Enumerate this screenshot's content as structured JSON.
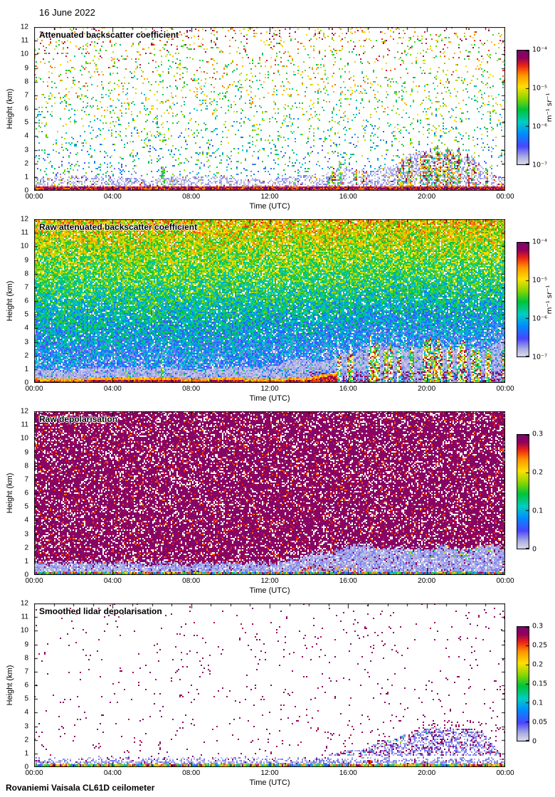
{
  "header": {
    "date_label": "16 June 2022"
  },
  "footer": {
    "instrument_label": "Rovaniemi Vaisala CL61D ceilometer"
  },
  "chart_data": [
    {
      "type": "heatmap",
      "title": "Attenuated backscatter coefficient",
      "xlabel": "Time (UTC)",
      "ylabel": "Height (km)",
      "x_ticks": [
        "00:00",
        "04:00",
        "08:00",
        "12:00",
        "16:00",
        "20:00",
        "00:00"
      ],
      "y_ticks": [
        "0",
        "1",
        "2",
        "3",
        "4",
        "5",
        "6",
        "7",
        "8",
        "9",
        "10",
        "11",
        "12"
      ],
      "x_range_hours": [
        0,
        24
      ],
      "y_range_km": [
        0,
        12
      ],
      "colorbar": {
        "scale": "log",
        "range": [
          "1e-7",
          "1e-4"
        ],
        "ticks_top_to_bottom": [
          "10⁻⁴",
          "10⁻⁵",
          "10⁻⁶",
          "10⁻⁷"
        ],
        "unit": "m⁻¹ sr⁻¹"
      },
      "render": {
        "kind": "sparse_backscatter",
        "seed": 101
      },
      "description": "Sparse colored speckle noise over white background; strong red aerosol layer below ~0.4 km all day; gray speckle boundary layer below ~1 km growing to ~3 km after 15:00; narrow green plume near 06:30 up to ~2 km; mixed colorful boundary-layer structures 15:00-23:30 peaking near 21:00."
    },
    {
      "type": "heatmap",
      "title": "Raw attenuated backscatter coefficient",
      "xlabel": "Time (UTC)",
      "ylabel": "Height (km)",
      "x_ticks": [
        "00:00",
        "04:00",
        "08:00",
        "12:00",
        "16:00",
        "20:00",
        "00:00"
      ],
      "y_ticks": [
        "0",
        "1",
        "2",
        "3",
        "4",
        "5",
        "6",
        "7",
        "8",
        "9",
        "10",
        "11",
        "12"
      ],
      "x_range_hours": [
        0,
        24
      ],
      "y_range_km": [
        0,
        12
      ],
      "colorbar": {
        "scale": "log",
        "range": [
          "1e-7",
          "1e-4"
        ],
        "ticks_top_to_bottom": [
          "10⁻⁴",
          "10⁻⁵",
          "10⁻⁶",
          "10⁻⁷"
        ],
        "unit": "m⁻¹ sr⁻¹"
      },
      "render": {
        "kind": "dense_backscatter",
        "seed": 202
      },
      "description": "Dense noise over full panel: green-yellow at top grading through cyan to blue lower down; light gray low-signal zone below ~1 km rising to ~3 km by late evening; solid red surface layer below ~0.3 km until ~15:30 thickening 13:30-15:30; blue-purple band near surface after 14:00; colorful vertical streaks 16:00-23:00 up to ~3 km; green plume near 06:30."
    },
    {
      "type": "heatmap",
      "title": "Raw depolarisation",
      "xlabel": "Time (UTC)",
      "ylabel": "Height (km)",
      "x_ticks": [
        "00:00",
        "04:00",
        "08:00",
        "12:00",
        "16:00",
        "20:00",
        "00:00"
      ],
      "y_ticks": [
        "0",
        "1",
        "2",
        "3",
        "4",
        "5",
        "6",
        "7",
        "8",
        "9",
        "10",
        "11",
        "12"
      ],
      "x_range_hours": [
        0,
        24
      ],
      "y_range_km": [
        0,
        12
      ],
      "colorbar": {
        "scale": "linear",
        "range": [
          0,
          0.3
        ],
        "ticks_top_to_bottom": [
          "0.3",
          "0.2",
          "0.1",
          "0"
        ],
        "unit": ""
      },
      "render": {
        "kind": "raw_depolarisation",
        "seed": 303
      },
      "description": "Dense purple-magenta noise with scattered red speckles above ~1 km; pale low-depolarisation band below ~0.9 km widening to ~2 km after 13:00; multicolored strip at the very bottom; red-orange patches near surface 14:00-16:00; cyan-green speckles along the band top edge after 19:00."
    },
    {
      "type": "heatmap",
      "title": "Smoothed lidar depolarisation",
      "xlabel": "Time (UTC)",
      "ylabel": "Height (km)",
      "x_ticks": [
        "00:00",
        "04:00",
        "08:00",
        "12:00",
        "16:00",
        "20:00",
        "00:00"
      ],
      "y_ticks": [
        "0",
        "1",
        "2",
        "3",
        "4",
        "5",
        "6",
        "7",
        "8",
        "9",
        "10",
        "11",
        "12"
      ],
      "x_range_hours": [
        0,
        24
      ],
      "y_range_km": [
        0,
        12
      ],
      "colorbar": {
        "scale": "linear",
        "range": [
          0,
          0.3
        ],
        "ticks_top_to_bottom": [
          "0.3",
          "0.25",
          "0.2",
          "0.15",
          "0.1",
          "0.05",
          "0"
        ],
        "unit": ""
      },
      "render": {
        "kind": "smoothed_depolarisation",
        "seed": 404
      },
      "description": "Mostly white with sparse purple speckles; continuous multicolored stripe below ~0.25 km; pale lavender band fading up to ~0.8 km; purple speckle column near 06:20 up to ~2 km; pale blue cloud with purple speckles growing after 14:30 to ~3 km near 21:00; dark red blob near 17:00 below 0.5 km."
    }
  ]
}
